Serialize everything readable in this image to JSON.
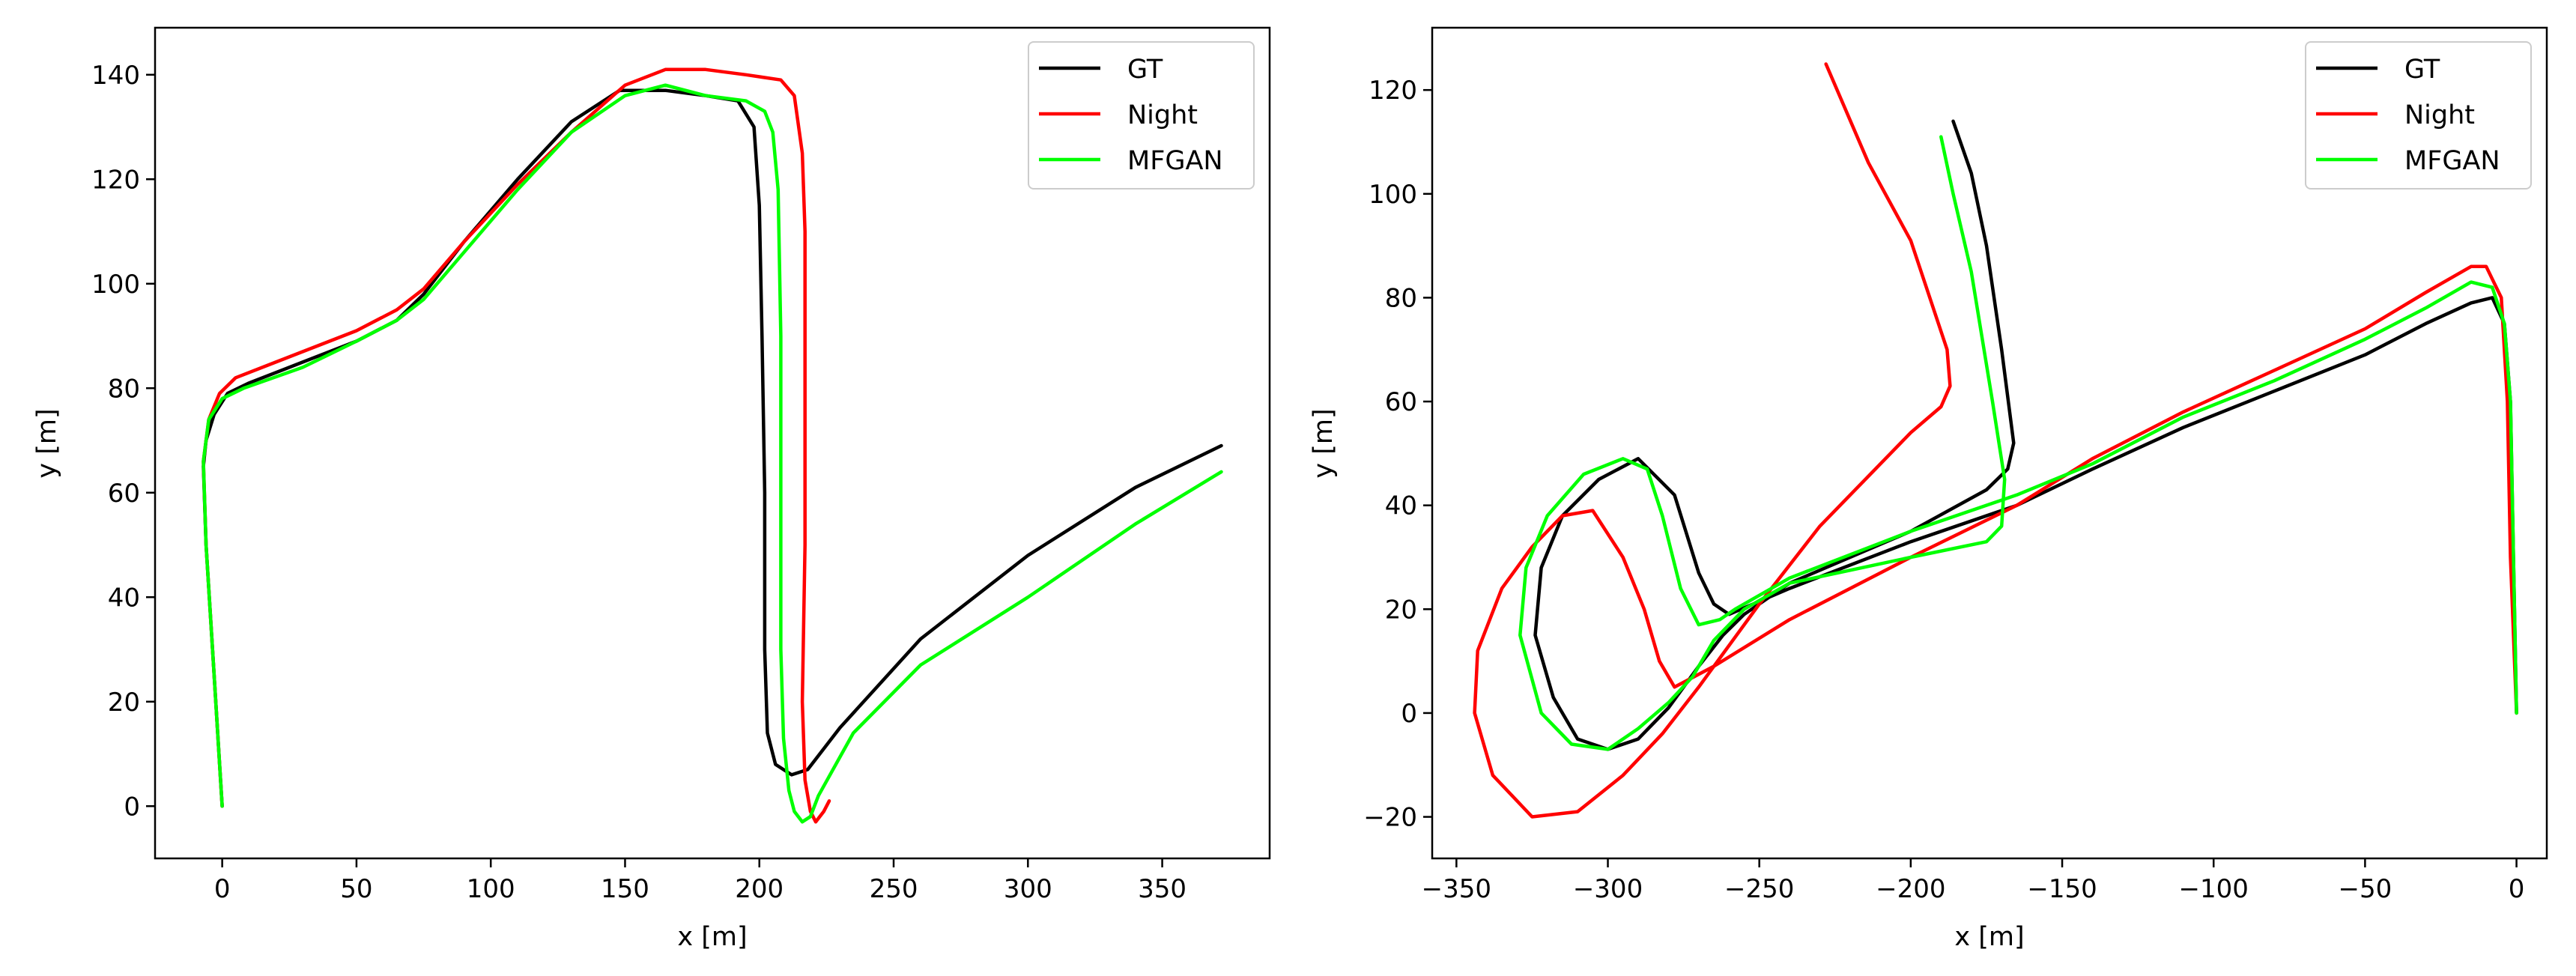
{
  "chart_data": [
    {
      "type": "line",
      "title": "",
      "xlabel": "x [m]",
      "ylabel": "y [m]",
      "xlim": [
        -25,
        390
      ],
      "ylim": [
        -10,
        149
      ],
      "xticks": [
        0,
        50,
        100,
        150,
        200,
        250,
        300,
        350
      ],
      "yticks": [
        0,
        20,
        40,
        60,
        80,
        100,
        120,
        140
      ],
      "xtick_labels": [
        "0",
        "50",
        "100",
        "150",
        "200",
        "250",
        "300",
        "350"
      ],
      "ytick_labels": [
        "0",
        "20",
        "40",
        "60",
        "80",
        "100",
        "120",
        "140"
      ],
      "grid": false,
      "legend_position": "top-right",
      "series": [
        {
          "name": "GT",
          "color": "#000000",
          "points": [
            [
              0,
              0
            ],
            [
              -3,
              25
            ],
            [
              -6,
              50
            ],
            [
              -7,
              65
            ],
            [
              -6,
              70
            ],
            [
              -3,
              75
            ],
            [
              2,
              79
            ],
            [
              10,
              81
            ],
            [
              30,
              85
            ],
            [
              50,
              89
            ],
            [
              65,
              93
            ],
            [
              75,
              98
            ],
            [
              90,
              108
            ],
            [
              110,
              120
            ],
            [
              130,
              131
            ],
            [
              148,
              137
            ],
            [
              165,
              137
            ],
            [
              180,
              136
            ],
            [
              192,
              135
            ],
            [
              198,
              130
            ],
            [
              200,
              115
            ],
            [
              201,
              90
            ],
            [
              202,
              60
            ],
            [
              202,
              30
            ],
            [
              203,
              14
            ],
            [
              206,
              8
            ],
            [
              212,
              6
            ],
            [
              218,
              7
            ],
            [
              230,
              15
            ],
            [
              260,
              32
            ],
            [
              300,
              48
            ],
            [
              340,
              61
            ],
            [
              372,
              69
            ]
          ]
        },
        {
          "name": "Night",
          "color": "#ff0000",
          "points": [
            [
              0,
              0
            ],
            [
              -3,
              25
            ],
            [
              -6,
              50
            ],
            [
              -7,
              66
            ],
            [
              -5,
              74
            ],
            [
              -1,
              79
            ],
            [
              5,
              82
            ],
            [
              20,
              85
            ],
            [
              50,
              91
            ],
            [
              65,
              95
            ],
            [
              75,
              99
            ],
            [
              90,
              108
            ],
            [
              110,
              119
            ],
            [
              130,
              129
            ],
            [
              150,
              138
            ],
            [
              165,
              141
            ],
            [
              180,
              141
            ],
            [
              195,
              140
            ],
            [
              208,
              139
            ],
            [
              213,
              136
            ],
            [
              216,
              125
            ],
            [
              217,
              110
            ],
            [
              217,
              80
            ],
            [
              217,
              50
            ],
            [
              216,
              20
            ],
            [
              217,
              5
            ],
            [
              219,
              -1
            ],
            [
              221,
              -3
            ],
            [
              224,
              -1
            ],
            [
              226,
              1
            ]
          ]
        },
        {
          "name": "MFGAN",
          "color": "#00ff00",
          "points": [
            [
              0,
              0
            ],
            [
              -3,
              25
            ],
            [
              -6,
              50
            ],
            [
              -7,
              66
            ],
            [
              -5,
              74
            ],
            [
              0,
              78
            ],
            [
              8,
              80
            ],
            [
              30,
              84
            ],
            [
              50,
              89
            ],
            [
              65,
              93
            ],
            [
              75,
              97
            ],
            [
              90,
              106
            ],
            [
              110,
              118
            ],
            [
              130,
              129
            ],
            [
              150,
              136
            ],
            [
              165,
              138
            ],
            [
              180,
              136
            ],
            [
              195,
              135
            ],
            [
              202,
              133
            ],
            [
              205,
              129
            ],
            [
              207,
              118
            ],
            [
              208,
              90
            ],
            [
              208,
              60
            ],
            [
              208,
              30
            ],
            [
              209,
              13
            ],
            [
              211,
              3
            ],
            [
              213,
              -1
            ],
            [
              216,
              -3
            ],
            [
              219,
              -2
            ],
            [
              222,
              2
            ],
            [
              235,
              14
            ],
            [
              260,
              27
            ],
            [
              300,
              40
            ],
            [
              340,
              54
            ],
            [
              372,
              64
            ]
          ]
        }
      ]
    },
    {
      "type": "line",
      "title": "",
      "xlabel": "x [m]",
      "ylabel": "y [m]",
      "xlim": [
        -358,
        10
      ],
      "ylim": [
        -28,
        132
      ],
      "xticks": [
        -350,
        -300,
        -250,
        -200,
        -150,
        -100,
        -50,
        0
      ],
      "yticks": [
        -20,
        0,
        20,
        40,
        60,
        80,
        100,
        120
      ],
      "xtick_labels": [
        "−350",
        "−300",
        "−250",
        "−200",
        "−150",
        "−100",
        "−50",
        "0"
      ],
      "ytick_labels": [
        "−20",
        "0",
        "20",
        "40",
        "60",
        "80",
        "100",
        "120"
      ],
      "grid": false,
      "legend_position": "top-right",
      "series": [
        {
          "name": "GT",
          "color": "#000000",
          "points": [
            [
              0,
              0
            ],
            [
              -1,
              30
            ],
            [
              -2,
              60
            ],
            [
              -4,
              75
            ],
            [
              -8,
              80
            ],
            [
              -15,
              79
            ],
            [
              -30,
              75
            ],
            [
              -50,
              69
            ],
            [
              -80,
              62
            ],
            [
              -110,
              55
            ],
            [
              -140,
              47
            ],
            [
              -165,
              40
            ],
            [
              -200,
              33
            ],
            [
              -240,
              24
            ],
            [
              -260,
              19
            ],
            [
              -265,
              21
            ],
            [
              -270,
              27
            ],
            [
              -278,
              42
            ],
            [
              -290,
              49
            ],
            [
              -303,
              45
            ],
            [
              -315,
              38
            ],
            [
              -322,
              28
            ],
            [
              -324,
              15
            ],
            [
              -318,
              3
            ],
            [
              -310,
              -5
            ],
            [
              -300,
              -7
            ],
            [
              -290,
              -5
            ],
            [
              -280,
              1
            ],
            [
              -270,
              9
            ],
            [
              -262,
              15
            ],
            [
              -255,
              19
            ],
            [
              -240,
              25
            ],
            [
              -200,
              35
            ],
            [
              -175,
              43
            ],
            [
              -168,
              47
            ],
            [
              -166,
              52
            ],
            [
              -170,
              70
            ],
            [
              -175,
              90
            ],
            [
              -180,
              104
            ],
            [
              -186,
              114
            ]
          ]
        },
        {
          "name": "Night",
          "color": "#ff0000",
          "points": [
            [
              0,
              0
            ],
            [
              -2,
              30
            ],
            [
              -3,
              60
            ],
            [
              -5,
              80
            ],
            [
              -10,
              86
            ],
            [
              -15,
              86
            ],
            [
              -30,
              81
            ],
            [
              -50,
              74
            ],
            [
              -80,
              66
            ],
            [
              -110,
              58
            ],
            [
              -140,
              49
            ],
            [
              -165,
              40
            ],
            [
              -200,
              30
            ],
            [
              -240,
              18
            ],
            [
              -265,
              9
            ],
            [
              -278,
              5
            ],
            [
              -283,
              10
            ],
            [
              -288,
              20
            ],
            [
              -295,
              30
            ],
            [
              -305,
              39
            ],
            [
              -315,
              38
            ],
            [
              -325,
              32
            ],
            [
              -335,
              24
            ],
            [
              -343,
              12
            ],
            [
              -344,
              0
            ],
            [
              -338,
              -12
            ],
            [
              -325,
              -20
            ],
            [
              -310,
              -19
            ],
            [
              -295,
              -12
            ],
            [
              -282,
              -4
            ],
            [
              -270,
              5
            ],
            [
              -250,
              21
            ],
            [
              -230,
              36
            ],
            [
              -200,
              54
            ],
            [
              -190,
              59
            ],
            [
              -187,
              63
            ],
            [
              -188,
              70
            ],
            [
              -200,
              91
            ],
            [
              -214,
              106
            ],
            [
              -228,
              125
            ]
          ]
        },
        {
          "name": "MFGAN",
          "color": "#00ff00",
          "points": [
            [
              0,
              0
            ],
            [
              -1,
              30
            ],
            [
              -2,
              60
            ],
            [
              -4,
              75
            ],
            [
              -8,
              82
            ],
            [
              -15,
              83
            ],
            [
              -30,
              78
            ],
            [
              -50,
              72
            ],
            [
              -80,
              64
            ],
            [
              -110,
              57
            ],
            [
              -140,
              48
            ],
            [
              -165,
              42
            ],
            [
              -200,
              35
            ],
            [
              -240,
              26
            ],
            [
              -258,
              20
            ],
            [
              -263,
              18
            ],
            [
              -270,
              17
            ],
            [
              -276,
              24
            ],
            [
              -282,
              38
            ],
            [
              -287,
              47
            ],
            [
              -295,
              49
            ],
            [
              -308,
              46
            ],
            [
              -320,
              38
            ],
            [
              -327,
              28
            ],
            [
              -329,
              15
            ],
            [
              -322,
              0
            ],
            [
              -312,
              -6
            ],
            [
              -300,
              -7
            ],
            [
              -290,
              -3
            ],
            [
              -280,
              2
            ],
            [
              -272,
              7
            ],
            [
              -265,
              14
            ],
            [
              -255,
              20
            ],
            [
              -240,
              25
            ],
            [
              -200,
              30
            ],
            [
              -175,
              33
            ],
            [
              -170,
              36
            ],
            [
              -169,
              45
            ],
            [
              -173,
              60
            ],
            [
              -180,
              85
            ],
            [
              -186,
              100
            ],
            [
              -190,
              111
            ]
          ]
        }
      ]
    }
  ]
}
